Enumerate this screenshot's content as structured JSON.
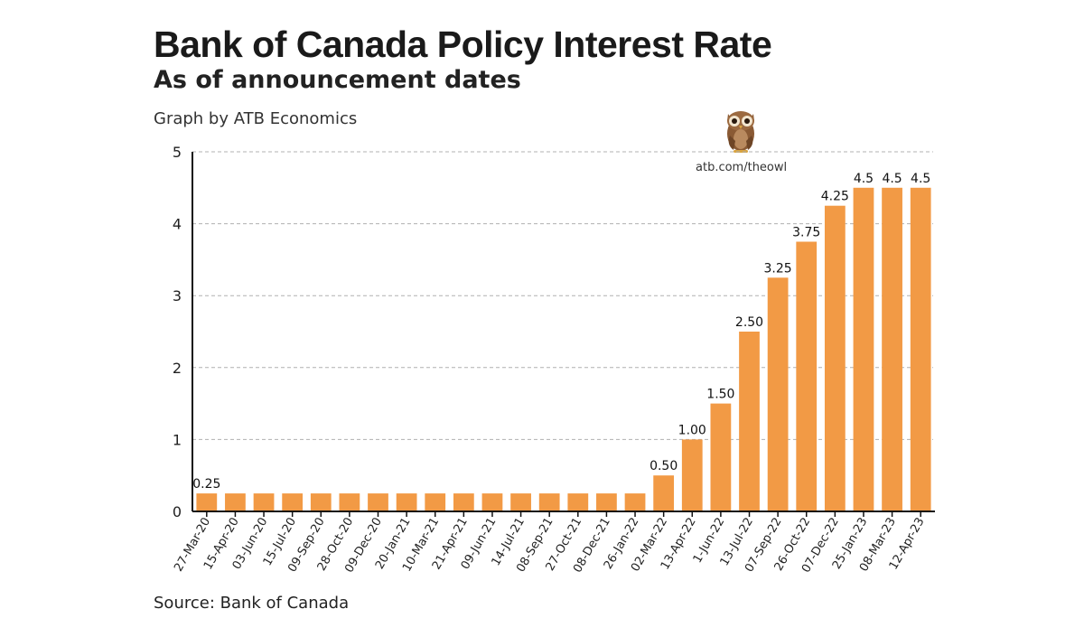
{
  "header": {
    "title": "Bank of Canada Policy Interest Rate",
    "subtitle": "As of announcement dates",
    "credit": "Graph by ATB Economics"
  },
  "branding": {
    "logo_icon": "owl-icon",
    "url": "atb.com/theowl"
  },
  "footer": {
    "source": "Source: Bank of Canada"
  },
  "colors": {
    "bar": "#F29A45",
    "grid": "#b0b0b0",
    "axis": "#111111"
  },
  "chart_data": {
    "type": "bar",
    "title": "Bank of Canada Policy Interest Rate",
    "subtitle": "As of announcement dates",
    "xlabel": "",
    "ylabel": "",
    "ylim": [
      0,
      5
    ],
    "yticks": [
      0,
      1,
      2,
      3,
      4,
      5
    ],
    "grid": "horizontal dashed",
    "categories": [
      "27-Mar-20",
      "15-Apr-20",
      "03-Jun-20",
      "15-Jul-20",
      "09-Sep-20",
      "28-Oct-20",
      "09-Dec-20",
      "20-Jan-21",
      "10-Mar-21",
      "21-Apr-21",
      "09-Jun-21",
      "14-Jul-21",
      "08-Sep-21",
      "27-Oct-21",
      "08-Dec-21",
      "26-Jan-22",
      "02-Mar-22",
      "13-Apr-22",
      "1-Jun-22",
      "13-Jul-22",
      "07-Sep-22",
      "26-Oct-22",
      "07-Dec-22",
      "25-Jan-23",
      "08-Mar-23",
      "12-Apr-23"
    ],
    "values": [
      0.25,
      0.25,
      0.25,
      0.25,
      0.25,
      0.25,
      0.25,
      0.25,
      0.25,
      0.25,
      0.25,
      0.25,
      0.25,
      0.25,
      0.25,
      0.25,
      0.5,
      1.0,
      1.5,
      2.5,
      3.25,
      3.75,
      4.25,
      4.5,
      4.5,
      4.5
    ],
    "data_labels": [
      "0.25",
      "",
      "",
      "",
      "",
      "",
      "",
      "",
      "",
      "",
      "",
      "",
      "",
      "",
      "",
      "",
      "0.50",
      "1.00",
      "1.50",
      "2.50",
      "3.25",
      "3.75",
      "4.25",
      "4.5",
      "4.5",
      "4.5"
    ]
  }
}
